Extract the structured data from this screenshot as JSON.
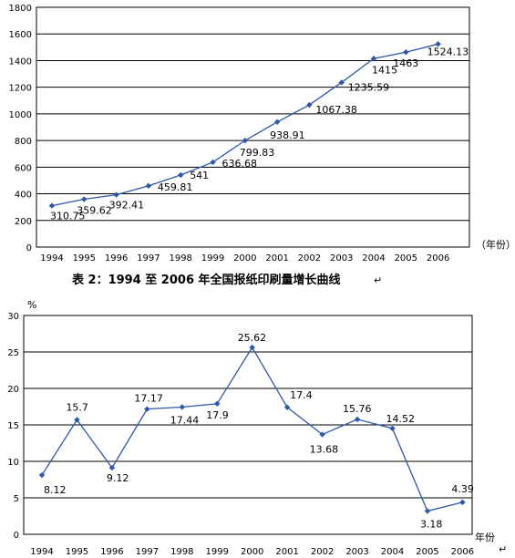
{
  "caption": "表 2：1994 至 2006 年全国报纸印刷量增长曲线",
  "caption_mark": "↵",
  "chart_data": [
    {
      "type": "line",
      "categories": [
        "1994",
        "1995",
        "1996",
        "1997",
        "1998",
        "1999",
        "2000",
        "2001",
        "2002",
        "2003",
        "2004",
        "2005",
        "2006"
      ],
      "series": [
        {
          "values": [
            310.75,
            359.62,
            392.41,
            459.81,
            541,
            636.68,
            799.83,
            938.91,
            1067.38,
            1235.59,
            1415,
            1463,
            1524.13
          ],
          "labels": [
            "310.75",
            "359.62",
            "392.41",
            "459.81",
            "541",
            "636.68",
            "799.83",
            "938.91",
            "1067.38",
            "1235.59",
            "1415",
            "1463",
            "1524.13"
          ]
        }
      ],
      "ylim": [
        0,
        1800
      ],
      "yticks": [
        "0",
        "200",
        "400",
        "600",
        "800",
        "1000",
        "1200",
        "1400",
        "1600",
        "1800"
      ],
      "xlabel": "（年份）",
      "ylabel": "",
      "grid": true,
      "color": "#2e59a8"
    },
    {
      "type": "line",
      "categories": [
        "1994",
        "1995",
        "1996",
        "1997",
        "1998",
        "1999",
        "2000",
        "2001",
        "2002",
        "2003",
        "2004",
        "2005",
        "2006"
      ],
      "series": [
        {
          "values": [
            8.12,
            15.7,
            9.12,
            17.17,
            17.44,
            17.9,
            25.62,
            17.4,
            13.68,
            15.76,
            14.52,
            3.18,
            4.39
          ],
          "labels": [
            "8.12",
            "15.7",
            "9.12",
            "17.17",
            "17.44",
            "17.9",
            "25.62",
            "17.4",
            "13.68",
            "15.76",
            "14.52",
            "3.18",
            "4.39"
          ]
        }
      ],
      "ylim": [
        0,
        30
      ],
      "yticks": [
        "0",
        "5",
        "10",
        "15",
        "20",
        "25",
        "30"
      ],
      "xlabel": "年份",
      "ylabel": "%",
      "grid": true,
      "color": "#2e59a8",
      "return_mark": "↵"
    }
  ]
}
